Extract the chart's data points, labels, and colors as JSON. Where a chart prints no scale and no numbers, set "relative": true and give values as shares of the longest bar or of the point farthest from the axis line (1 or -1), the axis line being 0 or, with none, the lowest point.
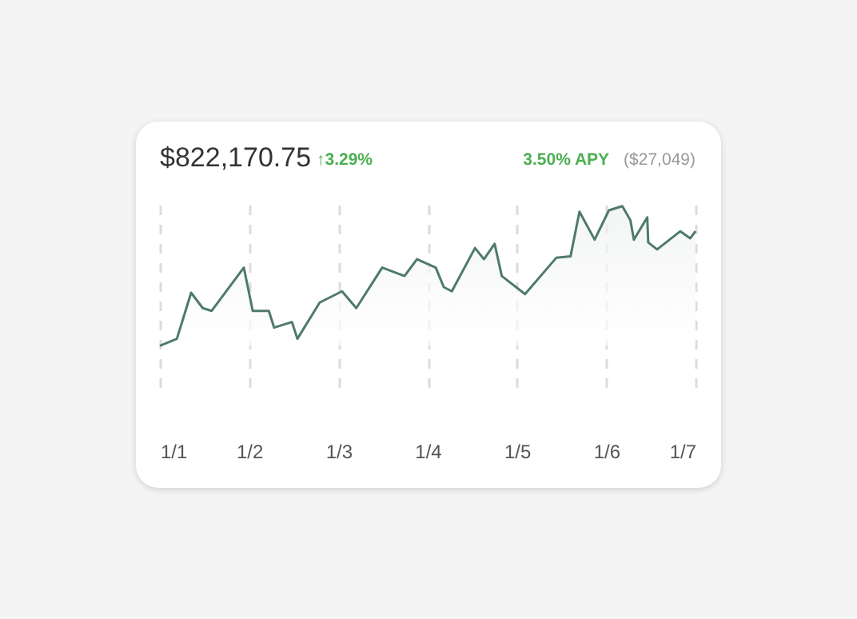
{
  "chart_data": {
    "type": "area",
    "title": "$822,170.75",
    "subtitle": "↑3.29%",
    "annotations": [
      "3.50% APY",
      "($27,049)"
    ],
    "relative": true,
    "grid": "x",
    "line_style": "solid",
    "xlim": [
      "--01-01",
      "--01-07"
    ],
    "xticks": [
      {
        "value": "--01-01",
        "label": "1/1"
      },
      {
        "value": "--01-02",
        "label": "1/2"
      },
      {
        "value": "--01-03",
        "label": "1/3"
      },
      {
        "value": "--01-04",
        "label": "1/4"
      },
      {
        "value": "--01-05",
        "label": "1/5"
      },
      {
        "value": "--01-06",
        "label": "1/6"
      },
      {
        "value": "--01-07",
        "label": "1/7"
      }
    ],
    "x": [
      "--01-01T00:00",
      "--01-01T04:34",
      "--01-01T08:24",
      "--01-01T11:31",
      "--01-01T13:55",
      "--01-01T22:34",
      "--01-02T00:58",
      "--01-02T05:17",
      "--01-02T06:43",
      "--01-02T11:31",
      "--01-02T12:58",
      "--01-02T18:58",
      "--01-03T00:58",
      "--01-03T04:48",
      "--01-03T11:46",
      "--01-03T17:46",
      "--01-03T21:07",
      "--01-04T02:10",
      "--01-04T04:19",
      "--01-04T06:29",
      "--01-04T12:43",
      "--01-04T15:07",
      "--01-04T18:00",
      "--01-04T19:55",
      "--01-05T02:10",
      "--01-05T10:34",
      "--01-05T14:24",
      "--01-05T16:48",
      "--01-05T20:53",
      "--01-06T00:43",
      "--01-06T04:19",
      "--01-06T06:29",
      "--01-06T07:26",
      "--01-06T11:02",
      "--01-06T11:17",
      "--01-06T13:41",
      "--01-06T19:55",
      "--01-06T22:34",
      "--01-07T00:00"
    ],
    "series": [
      {
        "color": "#4e7a6c",
        "values": [
          0,
          0.05,
          0.38,
          0.27,
          0.25,
          0.56,
          0.25,
          0.25,
          0.13,
          0.17,
          0.05,
          0.31,
          0.39,
          0.27,
          0.56,
          0.5,
          0.62,
          0.56,
          0.42,
          0.39,
          0.7,
          0.62,
          0.73,
          0.5,
          0.37,
          0.63,
          0.64,
          0.96,
          0.76,
          0.97,
          1.0,
          0.9,
          0.76,
          0.92,
          0.74,
          0.69,
          0.82,
          0.77,
          0.82
        ]
      }
    ]
  }
}
